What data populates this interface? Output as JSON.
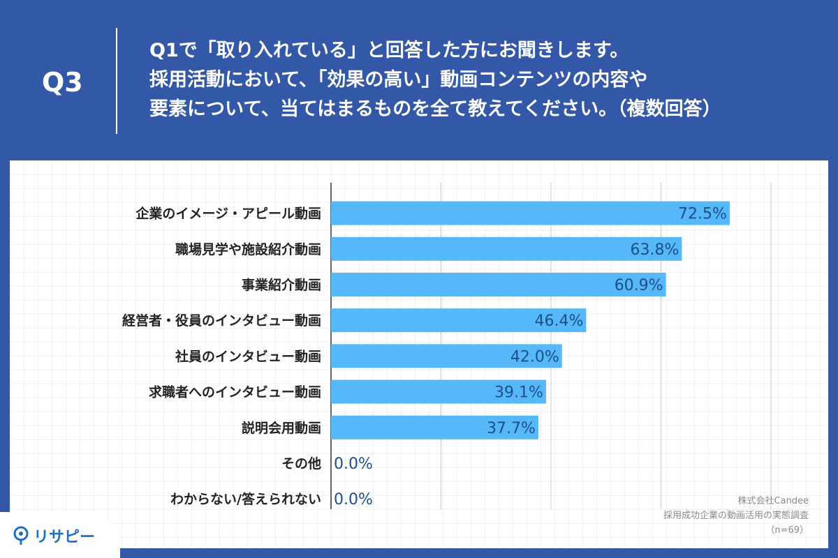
{
  "header": {
    "q_label": "Q3",
    "question_lines": [
      "Q1で「取り入れている」と回答した方にお聞きします。",
      "採用活動において、「効果の高い」動画コンテンツの内容や",
      "要素について、当てはまるものを全て教えてください。（複数回答）"
    ]
  },
  "source": {
    "company": "株式会社Candee",
    "survey": "採用成功企業の動画活用の実態調査",
    "sample": "（n=69）"
  },
  "logo": {
    "text": "リサピー",
    "icon": "pin-icon"
  },
  "colors": {
    "background": "#3358a8",
    "bar": "#56b8f8",
    "value_text": "#1a4f8a"
  },
  "chart_data": {
    "type": "bar",
    "orientation": "horizontal",
    "categories": [
      "企業のイメージ・アピール動画",
      "職場見学や施設紹介動画",
      "事業紹介動画",
      "経営者・役員のインタビュー動画",
      "社員のインタビュー動画",
      "求職者へのインタビュー動画",
      "説明会用動画",
      "その他",
      "わからない/答えられない"
    ],
    "values": [
      72.5,
      63.8,
      60.9,
      46.4,
      42.0,
      39.1,
      37.7,
      0.0,
      0.0
    ],
    "value_labels": [
      "72.5%",
      "63.8%",
      "60.9%",
      "46.4%",
      "42.0%",
      "39.1%",
      "37.7%",
      "0.0%",
      "0.0%"
    ],
    "xlim": [
      0,
      80
    ],
    "grid": true,
    "legend": "none"
  }
}
